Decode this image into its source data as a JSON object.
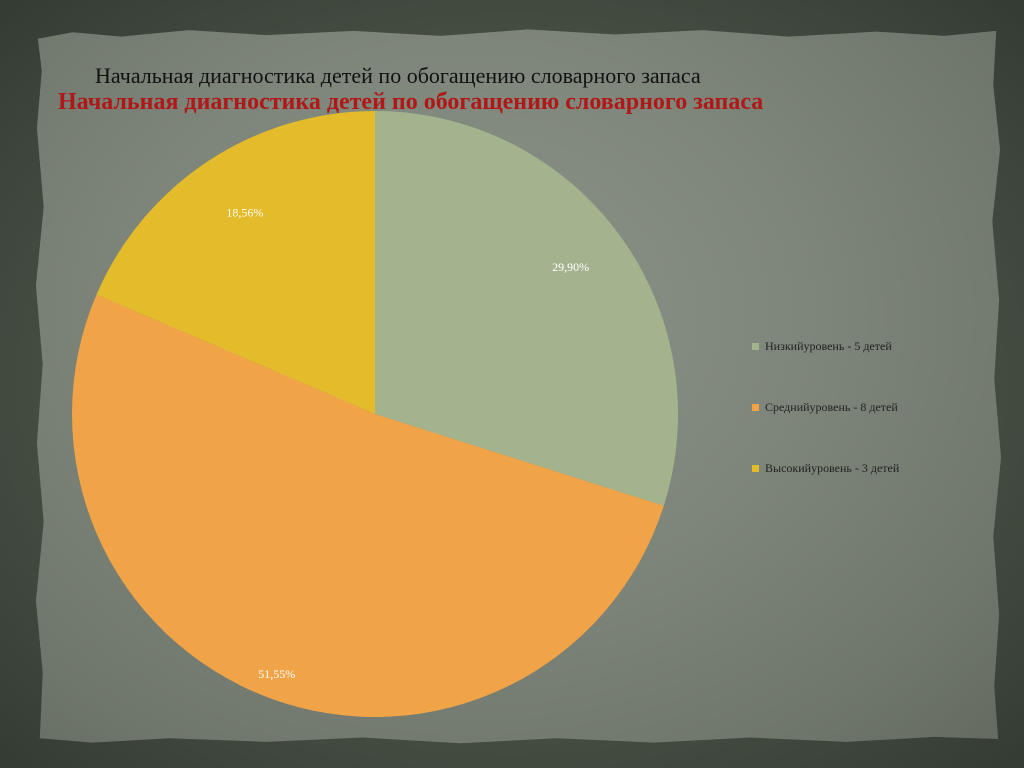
{
  "slide": {
    "title_top": "Начальная диагностика детей по обогащению словарного запаса",
    "title_chart": "Начальная диагностика детей по обогащению словарного запаса"
  },
  "chart_data": {
    "type": "pie",
    "title": "Начальная диагностика детей по обогащению словарного запаса",
    "slices": [
      {
        "label": "Низкийуровень - 5 детей",
        "value": 29.9,
        "data_label": "29,90%",
        "color": "#a3b38e"
      },
      {
        "label": "Среднийуровень - 8 детей",
        "value": 51.55,
        "data_label": "51,55%",
        "color": "#f0a447"
      },
      {
        "label": "Высокийуровень - 3 детей",
        "value": 18.56,
        "data_label": "18,56%",
        "color": "#e4bb2a"
      }
    ],
    "legend_position": "right",
    "start_angle": "top",
    "direction": "clockwise"
  }
}
